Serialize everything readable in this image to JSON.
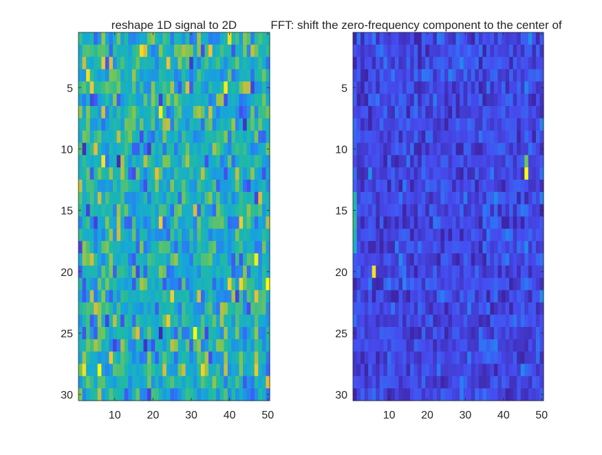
{
  "chart_data": [
    {
      "type": "heatmap",
      "title": "reshape 1D signal to 2D",
      "rows": 30,
      "cols": 50,
      "xticks": [
        10,
        20,
        30,
        40,
        50
      ],
      "yticks": [
        5,
        10,
        15,
        20,
        25,
        30
      ],
      "xlim": [
        0.5,
        50.5
      ],
      "ylim": [
        0.5,
        30.5
      ],
      "y_reversed": true,
      "colormap": "parula",
      "color_range": [
        0,
        1
      ],
      "seed": 17,
      "base_level": 0.52,
      "spread": 0.16,
      "hotspots": [
        {
          "row": 5,
          "col": 39,
          "value": 0.97
        },
        {
          "row": 12,
          "col": 21,
          "value": 0.88
        },
        {
          "row": 21,
          "col": 43,
          "value": 0.93
        },
        {
          "row": 28,
          "col": 47,
          "value": 0.9
        }
      ]
    },
    {
      "type": "heatmap",
      "title": "FFT: shift the zero-frequency component to the center of",
      "rows": 30,
      "cols": 50,
      "xticks": [
        10,
        20,
        30,
        40,
        50
      ],
      "yticks": [
        5,
        10,
        15,
        20,
        25,
        30
      ],
      "xlim": [
        0.5,
        50.5
      ],
      "ylim": [
        0.5,
        30.5
      ],
      "y_reversed": true,
      "colormap": "parula",
      "color_range": [
        0,
        1
      ],
      "seed": 91,
      "base_level": 0.13,
      "spread": 0.08,
      "hotspots": [
        {
          "row": 12,
          "col": 46,
          "value": 1.0
        },
        {
          "row": 11,
          "col": 46,
          "value": 0.72
        },
        {
          "row": 20,
          "col": 6,
          "value": 0.95
        },
        {
          "row": 14,
          "col": 1,
          "value": 0.55
        },
        {
          "row": 15,
          "col": 1,
          "value": 0.58
        },
        {
          "row": 16,
          "col": 1,
          "value": 0.62
        },
        {
          "row": 17,
          "col": 1,
          "value": 0.55
        },
        {
          "row": 18,
          "col": 1,
          "value": 0.5
        }
      ]
    }
  ]
}
